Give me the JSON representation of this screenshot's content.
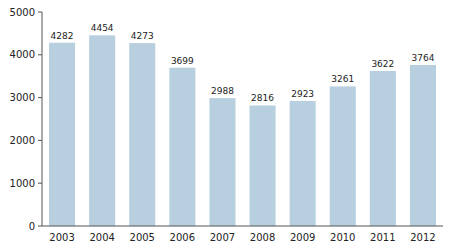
{
  "chart_data": {
    "type": "bar",
    "categories": [
      "2003",
      "2004",
      "2005",
      "2006",
      "2007",
      "2008",
      "2009",
      "2010",
      "2011",
      "2012"
    ],
    "values": [
      4282,
      4454,
      4273,
      3699,
      2988,
      2816,
      2923,
      3261,
      3622,
      3764
    ],
    "color": "#b8cfe0",
    "ylim": [
      0,
      5000
    ],
    "yticks": [
      0,
      1000,
      2000,
      3000,
      4000,
      5000
    ],
    "grid": false,
    "data_labels": true
  }
}
